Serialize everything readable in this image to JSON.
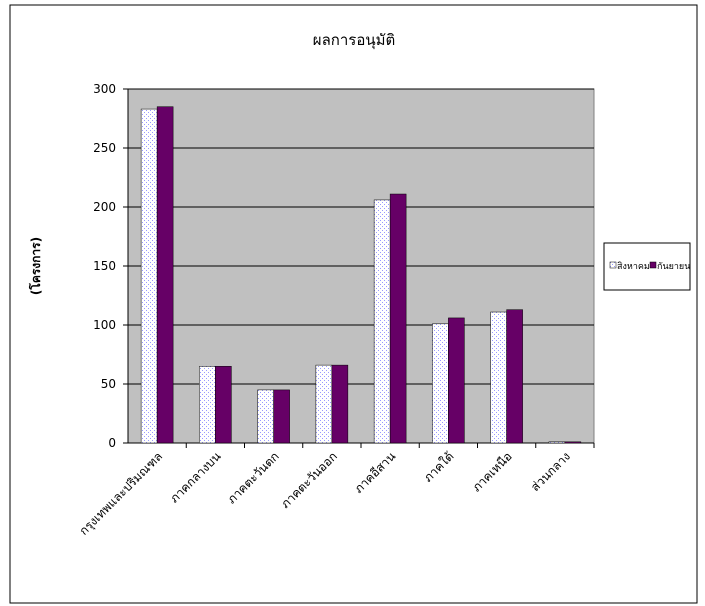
{
  "chart_data": {
    "type": "bar",
    "title": "ผลการอนุมัติ",
    "y_label": "(โครงการ)",
    "categories": [
      "กรุงเทพและปริมณฑล",
      "ภาคกลางบน",
      "ภาคตะวันตก",
      "ภาคตะวันออก",
      "ภาคอีสาน",
      "ภาคใต้",
      "ภาคเหนือ",
      "ส่วนกลาง"
    ],
    "series": [
      {
        "name": "สิงหาคม",
        "color": "#9999ff",
        "pattern": "dots",
        "values": [
          283,
          65,
          45,
          66,
          206,
          101,
          111,
          1
        ]
      },
      {
        "name": "กันยายน",
        "color": "#660066",
        "values": [
          285,
          65,
          45,
          66,
          211,
          106,
          113,
          1
        ]
      }
    ],
    "ylim": [
      0,
      300
    ],
    "yticks": [
      0,
      50,
      100,
      150,
      200,
      250,
      300
    ],
    "grid": true,
    "legend": "right"
  }
}
